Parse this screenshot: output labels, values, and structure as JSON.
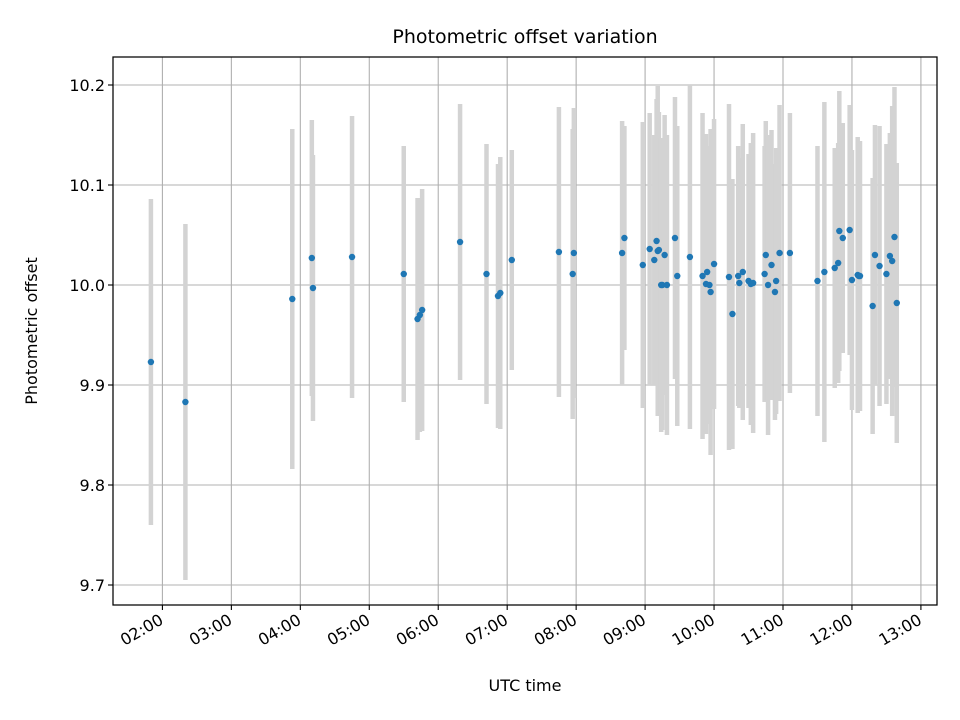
{
  "chart_data": {
    "type": "scatter",
    "title": "Photometric offset variation",
    "xlabel": "UTC time",
    "ylabel": "Photometric offset",
    "x_tick_labels": [
      "02:00",
      "03:00",
      "04:00",
      "05:00",
      "06:00",
      "07:00",
      "08:00",
      "09:00",
      "10:00",
      "11:00",
      "12:00",
      "13:00"
    ],
    "x_ticks": [
      "02:00",
      "03:00",
      "04:00",
      "05:00",
      "06:00",
      "07:00",
      "08:00",
      "09:00",
      "10:00",
      "11:00",
      "12:00",
      "13:00"
    ],
    "xlim": [
      "01:17",
      "13:14"
    ],
    "y_tick_labels": [
      "9.7",
      "9.8",
      "9.9",
      "10.0",
      "10.1",
      "10.2"
    ],
    "y_ticks": [
      9.7,
      9.8,
      9.9,
      10.0,
      10.1,
      10.2
    ],
    "ylim": [
      9.68,
      10.228
    ],
    "grid": true,
    "point_color": "#1f77b4",
    "errorbar_color": "#d3d3d3",
    "x": [
      "01:50",
      "02:20",
      "03:53",
      "04:10",
      "04:11",
      "04:45",
      "05:30",
      "05:42",
      "05:44",
      "05:46",
      "06:19",
      "06:42",
      "06:52",
      "06:54",
      "07:04",
      "07:45",
      "07:57",
      "07:58",
      "08:40",
      "08:42",
      "08:58",
      "09:04",
      "09:08",
      "09:10",
      "09:11",
      "09:12",
      "09:14",
      "09:15",
      "09:17",
      "09:19",
      "09:26",
      "09:28",
      "09:39",
      "09:50",
      "09:53",
      "09:54",
      "09:56",
      "09:57",
      "10:00",
      "10:13",
      "10:16",
      "10:21",
      "10:22",
      "10:25",
      "10:30",
      "10:32",
      "10:34",
      "10:44",
      "10:45",
      "10:47",
      "10:50",
      "10:53",
      "10:54",
      "10:57",
      "11:06",
      "11:30",
      "11:36",
      "11:45",
      "11:48",
      "11:49",
      "11:52",
      "11:58",
      "12:00",
      "12:05",
      "12:06",
      "12:07",
      "12:18",
      "12:20",
      "12:24",
      "12:30",
      "12:33",
      "12:35",
      "12:37",
      "12:39"
    ],
    "y": [
      9.923,
      9.883,
      9.986,
      10.027,
      9.997,
      10.028,
      10.011,
      9.966,
      9.97,
      9.975,
      10.043,
      10.011,
      9.989,
      9.992,
      10.025,
      10.033,
      10.011,
      10.032,
      10.032,
      10.047,
      10.02,
      10.036,
      10.025,
      10.044,
      10.034,
      10.035,
      10.0,
      10.0,
      10.03,
      10.0,
      10.047,
      10.009,
      10.028,
      10.009,
      10.001,
      10.013,
      10.0,
      9.993,
      10.021,
      10.008,
      9.971,
      10.009,
      10.002,
      10.013,
      10.004,
      10.001,
      10.002,
      10.011,
      10.03,
      10.0,
      10.02,
      9.993,
      10.004,
      10.032,
      10.032,
      10.004,
      10.013,
      10.017,
      10.022,
      10.054,
      10.047,
      10.055,
      10.005,
      10.01,
      10.009,
      10.009,
      9.979,
      10.03,
      10.019,
      10.011,
      10.029,
      10.024,
      10.048,
      9.982
    ],
    "yerr": [
      0.163,
      0.178,
      0.17,
      0.138,
      0.133,
      0.141,
      0.128,
      0.121,
      0.117,
      0.121,
      0.138,
      0.13,
      0.132,
      0.136,
      0.11,
      0.145,
      0.145,
      0.145,
      0.132,
      0.112,
      0.143,
      0.136,
      0.125,
      0.142,
      0.165,
      0.138,
      0.147,
      0.145,
      0.14,
      0.15,
      0.141,
      0.15,
      0.172,
      0.163,
      0.15,
      0.125,
      0.139,
      0.163,
      0.145,
      0.173,
      0.135,
      0.13,
      0.125,
      0.148,
      0.127,
      0.141,
      0.15,
      0.128,
      0.134,
      0.15,
      0.135,
      0.128,
      0.133,
      0.148,
      0.14,
      0.135,
      0.17,
      0.12,
      0.12,
      0.14,
      0.115,
      0.125,
      0.13,
      0.138,
      0.133,
      0.135,
      0.128,
      0.13,
      0.14,
      0.13,
      0.123,
      0.155,
      0.15,
      0.14
    ]
  }
}
